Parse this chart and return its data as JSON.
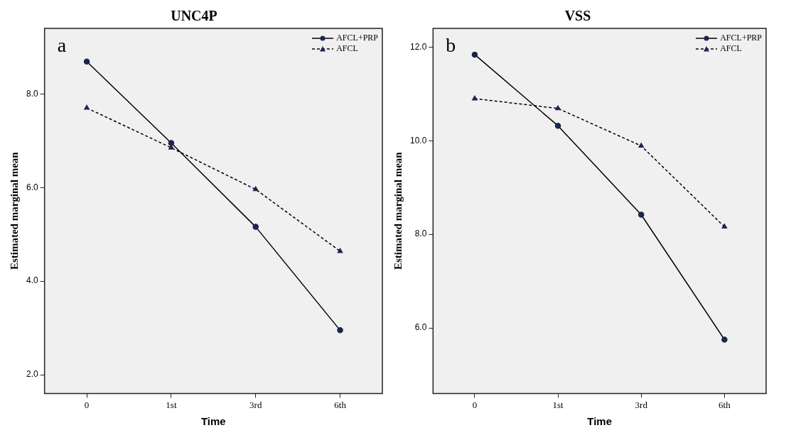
{
  "chart_data": [
    {
      "type": "line",
      "title": "UNC4P",
      "xlabel": "Time",
      "ylabel": "Estimated marginal mean",
      "categories": [
        "0",
        "1st",
        "3rd",
        "6th"
      ],
      "series": [
        {
          "name": "AFCL+PRP",
          "color": "#000000",
          "values": [
            8.69,
            6.95,
            5.16,
            2.95
          ],
          "marker": "circle",
          "line_style": "solid"
        },
        {
          "name": "AFCL",
          "color": "#000000",
          "values": [
            7.7,
            6.85,
            5.96,
            4.64
          ],
          "marker": "triangle",
          "line_style": "dashed"
        }
      ],
      "ylim": [
        1.6,
        9.4
      ],
      "yticks": [
        {
          "value": 2,
          "label": "2.0"
        },
        {
          "value": 4,
          "label": "4.0"
        },
        {
          "value": 6,
          "label": "6.0"
        },
        {
          "value": 8,
          "label": "8.0"
        }
      ],
      "grid": false,
      "legend": "top right",
      "annotations": [
        "a"
      ]
    },
    {
      "type": "line",
      "title": "VSS",
      "xlabel": "Time",
      "ylabel": "Estimated marginal mean",
      "categories": [
        "0",
        "1st",
        "3rd",
        "6th"
      ],
      "series": [
        {
          "name": "AFCL+PRP",
          "color": "#000000",
          "values": [
            11.84,
            10.32,
            8.42,
            5.75
          ],
          "marker": "circle",
          "line_style": "solid"
        },
        {
          "name": "AFCL",
          "color": "#000000",
          "values": [
            10.9,
            10.69,
            9.89,
            8.16
          ],
          "marker": "triangle",
          "line_style": "dashed"
        }
      ],
      "ylim": [
        4.6,
        12.4
      ],
      "yticks": [
        {
          "value": 6,
          "label": "6.0"
        },
        {
          "value": 8,
          "label": "8.0"
        },
        {
          "value": 10,
          "label": "10.0"
        },
        {
          "value": 12,
          "label": "12.0"
        }
      ],
      "grid": false,
      "legend": "top right",
      "annotations": [
        "b"
      ]
    }
  ]
}
